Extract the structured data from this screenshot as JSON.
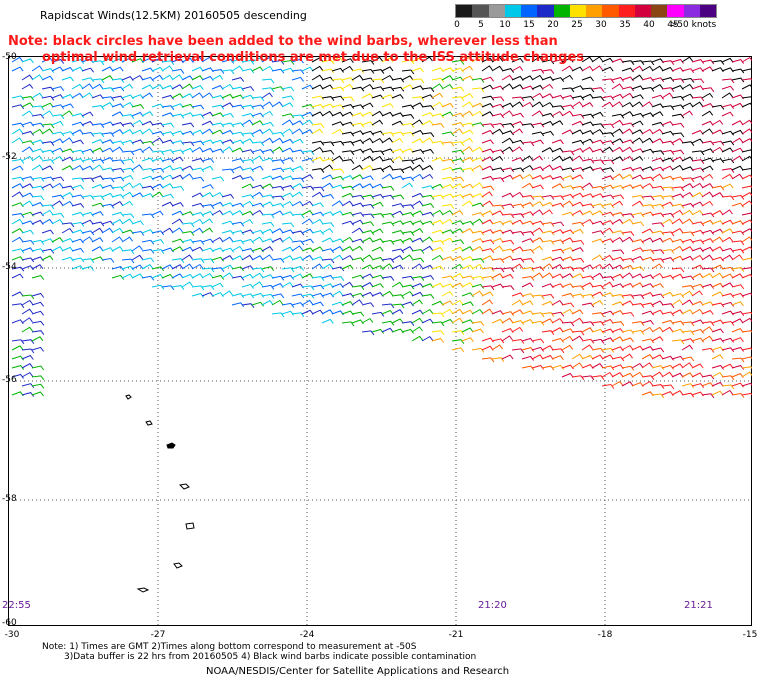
{
  "title": "Rapidscat Winds(12.5KM) 20160505 descending",
  "legend": {
    "ticks": [
      "0",
      "5",
      "10",
      "15",
      "20",
      "25",
      "30",
      "35",
      "40",
      "45",
      ">50 knots"
    ],
    "colors": [
      "#1a1a1a",
      "#555555",
      "#9a9a9a",
      "#00c8e8",
      "#0066ff",
      "#1e2ac8",
      "#00b400",
      "#ffe100",
      "#ffa000",
      "#ff5a00",
      "#ff1e1e",
      "#d2003c",
      "#8b4513",
      "#ff00ff",
      "#8a2be2",
      "#4b0082"
    ]
  },
  "note": {
    "line1": "Note: black circles have been added to the wind barbs, wherever less than",
    "line2": "optimal wind retrieval conditions are met due to the ISS attitude changes"
  },
  "axes": {
    "lat_labels": [
      "-50",
      "-52",
      "-54",
      "-56",
      "-58",
      "-60"
    ],
    "lon_labels": [
      "-30",
      "-27",
      "-24",
      "-21",
      "-18",
      "-15"
    ]
  },
  "times": {
    "left": "22:55",
    "middle": "21:20",
    "right": "21:21"
  },
  "footnote": {
    "line1": "Note: 1) Times are GMT 2)Times along bottom correspond to measurement at -50S",
    "line2": "3)Data buffer is 22 hrs from 20160505 4) Black wind barbs indicate possible contamination"
  },
  "credit": "NOAA/NESDIS/Center for Satellite Applications and Research"
}
